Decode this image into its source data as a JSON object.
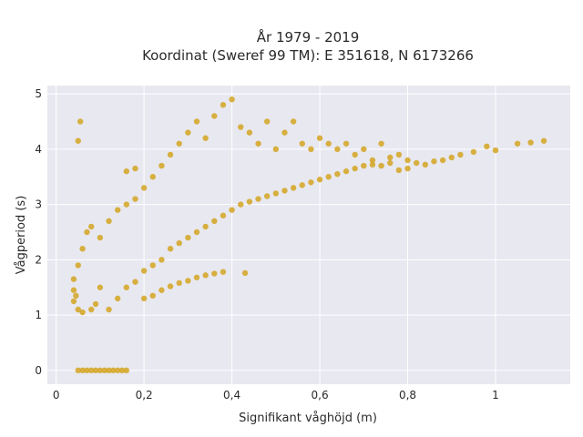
{
  "chart_data": {
    "type": "scatter",
    "title": "År 1979 - 2019",
    "subtitle": "Koordinat (Sweref 99 TM): E 351618, N 6173266",
    "xlabel": "Signifikant våghöjd (m)",
    "ylabel": "Vågperiod (s)",
    "xlim": [
      -0.02,
      1.17
    ],
    "ylim": [
      -0.25,
      5.15
    ],
    "x_ticks": [
      0,
      0.2,
      0.4,
      0.6,
      0.8,
      1
    ],
    "x_tick_labels": [
      "0",
      "0,2",
      "0,4",
      "0,6",
      "0,8",
      "1"
    ],
    "y_ticks": [
      0,
      1,
      2,
      3,
      4,
      5
    ],
    "y_tick_labels": [
      "0",
      "1",
      "2",
      "3",
      "4",
      "5"
    ],
    "grid": true,
    "marker_color": "#d4a421",
    "background_color": "#e8e8f0",
    "points": [
      [
        0.05,
        0
      ],
      [
        0.06,
        0
      ],
      [
        0.07,
        0
      ],
      [
        0.08,
        0
      ],
      [
        0.09,
        0
      ],
      [
        0.1,
        0
      ],
      [
        0.11,
        0
      ],
      [
        0.12,
        0
      ],
      [
        0.13,
        0
      ],
      [
        0.14,
        0
      ],
      [
        0.15,
        0
      ],
      [
        0.16,
        0
      ],
      [
        0.04,
        1.25
      ],
      [
        0.04,
        1.45
      ],
      [
        0.04,
        1.65
      ],
      [
        0.045,
        1.35
      ],
      [
        0.05,
        1.1
      ],
      [
        0.05,
        1.9
      ],
      [
        0.06,
        1.05
      ],
      [
        0.06,
        2.2
      ],
      [
        0.07,
        2.5
      ],
      [
        0.08,
        1.1
      ],
      [
        0.08,
        2.6
      ],
      [
        0.09,
        1.2
      ],
      [
        0.1,
        2.4
      ],
      [
        0.1,
        1.5
      ],
      [
        0.12,
        2.7
      ],
      [
        0.12,
        1.1
      ],
      [
        0.14,
        2.9
      ],
      [
        0.14,
        1.3
      ],
      [
        0.16,
        3.0
      ],
      [
        0.16,
        1.5
      ],
      [
        0.18,
        3.1
      ],
      [
        0.18,
        1.6
      ],
      [
        0.2,
        3.3
      ],
      [
        0.2,
        1.8
      ],
      [
        0.22,
        3.5
      ],
      [
        0.22,
        1.9
      ],
      [
        0.24,
        3.7
      ],
      [
        0.24,
        2.0
      ],
      [
        0.26,
        3.9
      ],
      [
        0.26,
        2.2
      ],
      [
        0.28,
        4.1
      ],
      [
        0.28,
        2.3
      ],
      [
        0.3,
        4.3
      ],
      [
        0.3,
        2.4
      ],
      [
        0.32,
        4.5
      ],
      [
        0.32,
        2.5
      ],
      [
        0.34,
        4.2
      ],
      [
        0.34,
        2.6
      ],
      [
        0.36,
        4.6
      ],
      [
        0.36,
        2.7
      ],
      [
        0.38,
        4.8
      ],
      [
        0.38,
        2.8
      ],
      [
        0.4,
        4.9
      ],
      [
        0.4,
        2.9
      ],
      [
        0.42,
        4.4
      ],
      [
        0.42,
        3.0
      ],
      [
        0.44,
        4.3
      ],
      [
        0.44,
        3.05
      ],
      [
        0.46,
        4.1
      ],
      [
        0.46,
        3.1
      ],
      [
        0.48,
        4.5
      ],
      [
        0.48,
        3.15
      ],
      [
        0.5,
        4.0
      ],
      [
        0.5,
        3.2
      ],
      [
        0.52,
        4.3
      ],
      [
        0.52,
        3.25
      ],
      [
        0.54,
        4.5
      ],
      [
        0.54,
        3.3
      ],
      [
        0.56,
        4.1
      ],
      [
        0.56,
        3.35
      ],
      [
        0.58,
        4.0
      ],
      [
        0.58,
        3.4
      ],
      [
        0.6,
        4.2
      ],
      [
        0.6,
        3.45
      ],
      [
        0.62,
        4.1
      ],
      [
        0.62,
        3.5
      ],
      [
        0.64,
        4.0
      ],
      [
        0.64,
        3.55
      ],
      [
        0.66,
        4.1
      ],
      [
        0.66,
        3.6
      ],
      [
        0.68,
        3.9
      ],
      [
        0.68,
        3.65
      ],
      [
        0.7,
        4.0
      ],
      [
        0.7,
        3.7
      ],
      [
        0.72,
        3.8
      ],
      [
        0.72,
        3.72
      ],
      [
        0.74,
        4.1
      ],
      [
        0.74,
        3.7
      ],
      [
        0.76,
        3.85
      ],
      [
        0.76,
        3.75
      ],
      [
        0.78,
        3.9
      ],
      [
        0.78,
        3.62
      ],
      [
        0.8,
        3.8
      ],
      [
        0.8,
        3.65
      ],
      [
        0.82,
        3.75
      ],
      [
        0.84,
        3.72
      ],
      [
        0.86,
        3.78
      ],
      [
        0.88,
        3.8
      ],
      [
        0.9,
        3.85
      ],
      [
        0.92,
        3.9
      ],
      [
        0.95,
        3.95
      ],
      [
        0.98,
        4.05
      ],
      [
        1.0,
        3.98
      ],
      [
        1.05,
        4.1
      ],
      [
        1.08,
        4.12
      ],
      [
        1.11,
        4.15
      ],
      [
        0.05,
        4.15
      ],
      [
        0.055,
        4.5
      ],
      [
        0.16,
        3.6
      ],
      [
        0.18,
        3.65
      ],
      [
        0.2,
        1.3
      ],
      [
        0.22,
        1.35
      ],
      [
        0.24,
        1.45
      ],
      [
        0.26,
        1.52
      ],
      [
        0.28,
        1.58
      ],
      [
        0.3,
        1.62
      ],
      [
        0.32,
        1.68
      ],
      [
        0.34,
        1.72
      ],
      [
        0.36,
        1.75
      ],
      [
        0.38,
        1.78
      ],
      [
        0.43,
        1.76
      ]
    ]
  }
}
